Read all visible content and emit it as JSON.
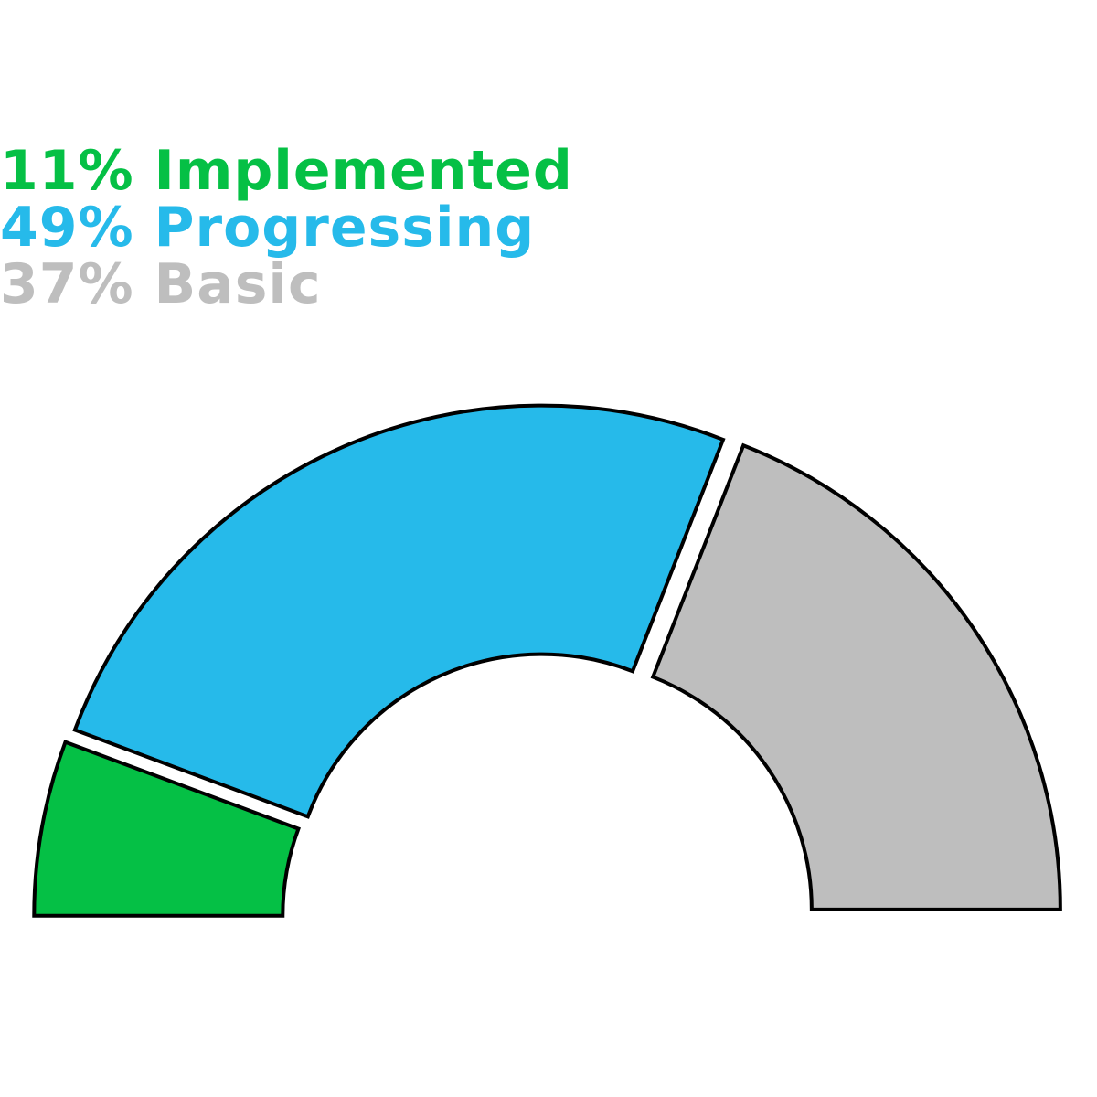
{
  "chart_data": {
    "type": "pie",
    "subtype": "semi-donut-gauge",
    "legend_position": "top-left",
    "categories": [
      "Implemented",
      "Progressing",
      "Basic"
    ],
    "values": [
      11,
      49,
      37
    ],
    "unit": "%",
    "colors": [
      "#05c045",
      "#26baea",
      "#bebebe"
    ],
    "outline_color": "#000000",
    "legend": [
      {
        "text": "11% Implemented",
        "color": "#05c045"
      },
      {
        "text": "49% Progressing",
        "color": "#26baea"
      },
      {
        "text": "37% Basic",
        "color": "#bebebe"
      }
    ]
  }
}
